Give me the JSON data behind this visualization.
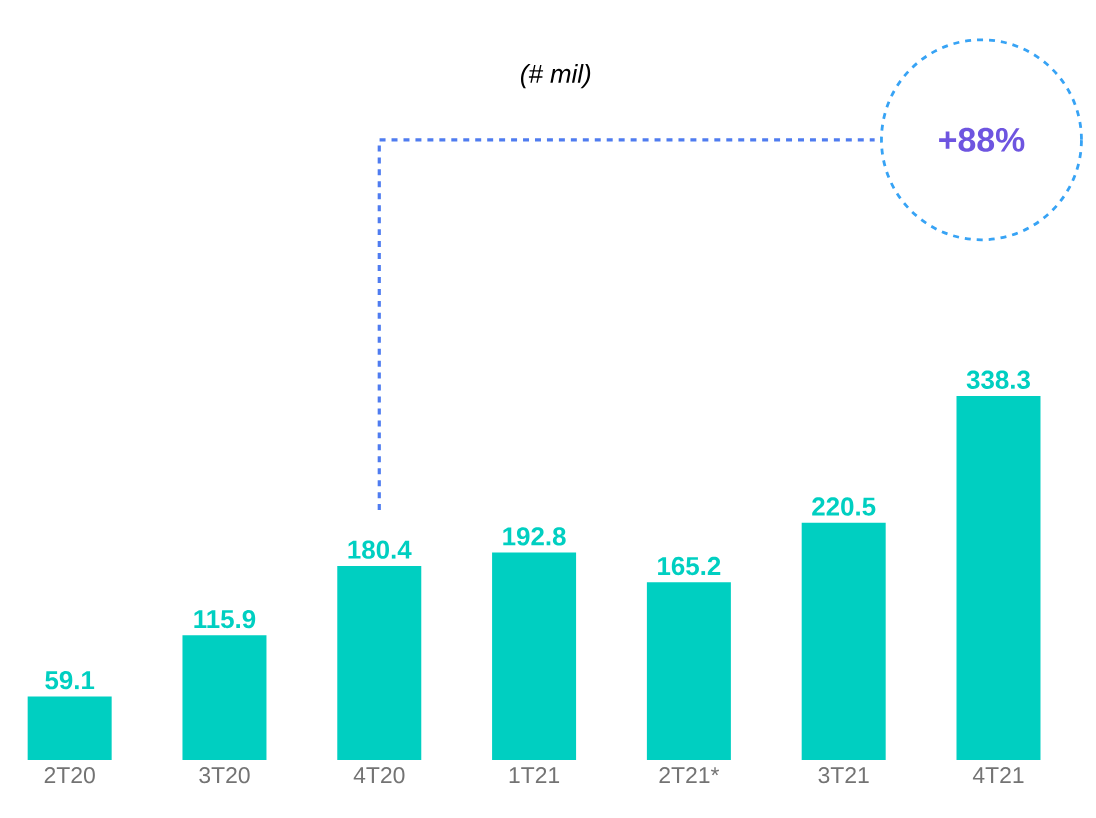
{
  "chart_data": {
    "type": "bar",
    "categories": [
      "2T20",
      "3T20",
      "4T20",
      "1T21",
      "2T21*",
      "3T21",
      "4T21"
    ],
    "values": [
      59.1,
      115.9,
      180.4,
      192.8,
      165.2,
      220.5,
      338.3
    ],
    "color": "#00cfc1",
    "data_labels": true,
    "annotations": [
      "(# mil)",
      "+88%"
    ]
  }
}
